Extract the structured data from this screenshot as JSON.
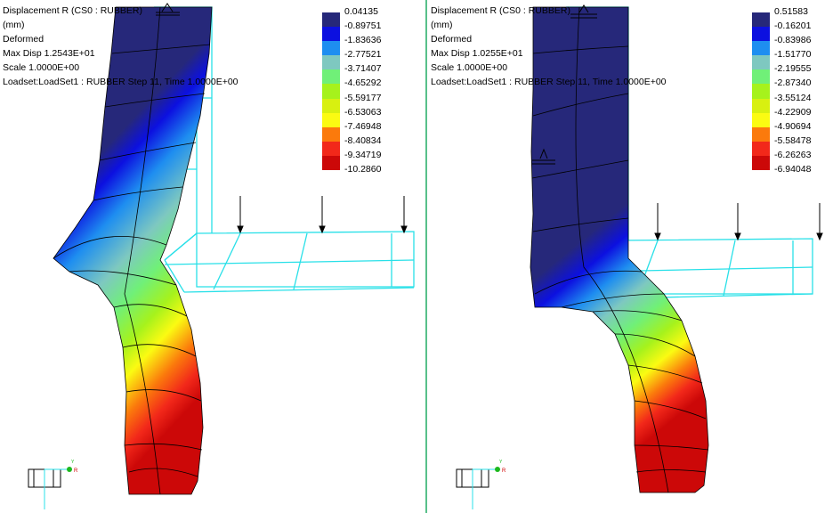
{
  "colors": [
    "#26287a",
    "#0c10e0",
    "#1e8ef0",
    "#7ec8c0",
    "#70f078",
    "#a6f21c",
    "#d8f010",
    "#fbfb12",
    "#fb7a0c",
    "#f2281a",
    "#cc0808"
  ],
  "left": {
    "info": [
      "Displacement R (CS0 : RUBBER)",
      "(mm)",
      "Deformed",
      "Max Disp  1.2543E+01",
      "Scale  1.0000E+00",
      "Loadset:LoadSet1 :   RUBBER Step 11, Time  1.0000E+00"
    ],
    "legend": [
      "0.04135",
      "-0.89751",
      "-1.83636",
      "-2.77521",
      "-3.71407",
      "-4.65292",
      "-5.59177",
      "-6.53063",
      "-7.46948",
      "-8.40834",
      "-9.34719",
      "-10.2860"
    ]
  },
  "right": {
    "info": [
      "Displacement R (CS0 : RUBBER)",
      "(mm)",
      "Deformed",
      "Max Disp  1.0255E+01",
      "Scale  1.0000E+00",
      "Loadset:LoadSet1 :   RUBBER Step 11, Time  1.0000E+00"
    ],
    "legend": [
      "0.51583",
      "-0.16201",
      "-0.83986",
      "-1.51770",
      "-2.19555",
      "-2.87340",
      "-3.55124",
      "-4.22909",
      "-4.90694",
      "-5.58478",
      "-6.26263",
      "-6.94048"
    ]
  },
  "triad": {
    "y_label": "Y",
    "r_label": "R"
  }
}
